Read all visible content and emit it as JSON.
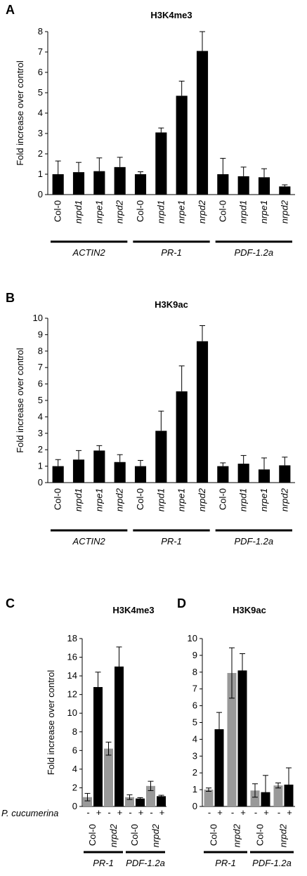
{
  "chart_data": [
    {
      "panel": "A",
      "type": "bar",
      "title": "H3K4me3",
      "ylabel": "Fold increase over control",
      "ylim": [
        0,
        8
      ],
      "yticks": [
        "0",
        "1",
        "2",
        "3",
        "4",
        "5",
        "6",
        "7",
        "8"
      ],
      "categories": [
        "Col-0",
        "nrpd1",
        "nrpe1",
        "nrpd2",
        "Col-0",
        "nrpd1",
        "nrpe1",
        "nrpd2",
        "Col-0",
        "nrpd1",
        "nrpe1",
        "nrpd2"
      ],
      "groups": [
        "ACTIN2",
        "PR-1",
        "PDF-1.2a"
      ],
      "colors": [
        "#000000"
      ],
      "values": [
        1.0,
        1.1,
        1.15,
        1.35,
        1.0,
        3.05,
        4.85,
        7.05,
        1.0,
        0.9,
        0.85,
        0.4
      ],
      "errors": [
        0.65,
        0.48,
        0.65,
        0.48,
        0.12,
        0.22,
        0.72,
        0.95,
        0.78,
        0.45,
        0.42,
        0.08
      ]
    },
    {
      "panel": "B",
      "type": "bar",
      "title": "H3K9ac",
      "ylabel": "Fold increase over control",
      "ylim": [
        0,
        10
      ],
      "yticks": [
        "0",
        "1",
        "2",
        "3",
        "4",
        "5",
        "6",
        "7",
        "8",
        "9",
        "10"
      ],
      "categories": [
        "Col-0",
        "nrpd1",
        "nrpe1",
        "nrpd2",
        "Col-0",
        "nrpd1",
        "nrpe1",
        "nrpd2",
        "Col-0",
        "nrpd1",
        "nrpe1",
        "nrpd2"
      ],
      "groups": [
        "ACTIN2",
        "PR-1",
        "PDF-1.2a"
      ],
      "colors": [
        "#000000"
      ],
      "values": [
        1.0,
        1.4,
        1.95,
        1.25,
        1.0,
        3.15,
        5.55,
        8.6,
        1.0,
        1.15,
        0.8,
        1.05
      ],
      "errors": [
        0.4,
        0.55,
        0.3,
        0.45,
        0.35,
        1.2,
        1.55,
        0.95,
        0.2,
        0.5,
        0.7,
        0.5
      ]
    },
    {
      "panel": "C",
      "type": "bar",
      "title": "H3K4me3",
      "ylabel": "Fold increase over control",
      "ylim": [
        0,
        18
      ],
      "yticks": [
        "0",
        "2",
        "4",
        "6",
        "8",
        "10",
        "12",
        "14",
        "16",
        "18"
      ],
      "treatment_label": "P. cucumerina",
      "treatment_signs": [
        "-",
        "+",
        "-",
        "+",
        "-",
        "+",
        "-",
        "+"
      ],
      "categories": [
        "Col-0",
        "nrpd2",
        "Col-0",
        "nrpd2"
      ],
      "groups": [
        "PR-1",
        "PDF-1.2a"
      ],
      "series": [
        {
          "color": "#999999",
          "values": [
            1.0,
            6.2,
            1.0,
            2.2
          ],
          "errors": [
            0.4,
            0.7,
            0.25,
            0.5
          ]
        },
        {
          "color": "#000000",
          "values": [
            12.8,
            15.0,
            0.85,
            1.1
          ],
          "errors": [
            1.6,
            2.1,
            0.1,
            0.1
          ]
        }
      ]
    },
    {
      "panel": "D",
      "type": "bar",
      "title": "H3K9ac",
      "ylim": [
        0,
        10
      ],
      "yticks": [
        "0",
        "1",
        "2",
        "3",
        "4",
        "5",
        "6",
        "7",
        "8",
        "9",
        "10"
      ],
      "treatment_signs": [
        "-",
        "+",
        "-",
        "+",
        "-",
        "+",
        "-",
        "+"
      ],
      "categories": [
        "Col-0",
        "nrpd2",
        "Col-0",
        "nrpd2"
      ],
      "groups": [
        "PR-1",
        "PDF-1.2a"
      ],
      "series": [
        {
          "color": "#999999",
          "values": [
            1.0,
            7.95,
            0.95,
            1.25
          ],
          "errors": [
            0.1,
            1.5,
            0.4,
            0.15
          ]
        },
        {
          "color": "#000000",
          "values": [
            4.6,
            8.1,
            0.85,
            1.3
          ],
          "errors": [
            1.0,
            1.0,
            1.0,
            1.0
          ]
        }
      ]
    }
  ]
}
